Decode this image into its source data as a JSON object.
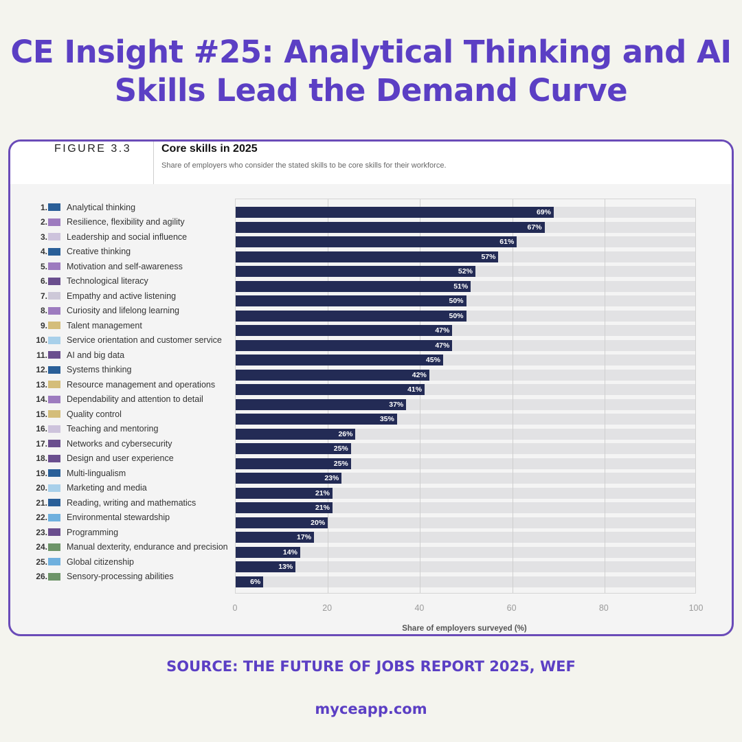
{
  "headline": {
    "line1": "CE Insight #25: Analytical Thinking and AI",
    "line2": "Skills Lead the Demand Curve",
    "color": "#5b3fc4"
  },
  "figure": {
    "label": "FIGURE 3.3",
    "title": "Core skills in 2025",
    "subtitle": "Share of employers who consider the stated skills to be core skills for their workforce.",
    "bar_color": "#232b55",
    "track_color": "#e2e2e4"
  },
  "footer": {
    "source": "SOURCE: THE FUTURE OF JOBS REPORT 2025, WEF",
    "site": "myceapp.com"
  },
  "chart_data": {
    "type": "bar",
    "orientation": "horizontal",
    "title": "Core skills in 2025",
    "subtitle": "Share of employers who consider the stated skills to be core skills for their workforce.",
    "xlabel": "Share of employers surveyed (%)",
    "ylabel": "",
    "xlim": [
      0,
      100
    ],
    "xticks": [
      0,
      20,
      40,
      60,
      80,
      100
    ],
    "grid": true,
    "legend": "none",
    "categories": [
      "Analytical thinking",
      "Resilience, flexibility and agility",
      "Leadership and social influence",
      "Creative thinking",
      "Motivation and self-awareness",
      "Technological literacy",
      "Empathy and active listening",
      "Curiosity and lifelong learning",
      "Talent management",
      "Service orientation and customer service",
      "AI and big data",
      "Systems thinking",
      "Resource management and operations",
      "Dependability and attention to detail",
      "Quality control",
      "Teaching and mentoring",
      "Networks and cybersecurity",
      "Design and user experience",
      "Multi-lingualism",
      "Marketing and media",
      "Reading, writing and mathematics",
      "Environmental stewardship",
      "Programming",
      "Manual dexterity, endurance and precision",
      "Global citizenship",
      "Sensory-processing abilities"
    ],
    "values": [
      69,
      67,
      61,
      57,
      52,
      51,
      50,
      50,
      47,
      47,
      45,
      42,
      41,
      37,
      35,
      26,
      25,
      25,
      23,
      21,
      21,
      20,
      17,
      14,
      13,
      6
    ],
    "value_labels": [
      "69%",
      "67%",
      "61%",
      "57%",
      "52%",
      "51%",
      "50%",
      "50%",
      "47%",
      "47%",
      "45%",
      "42%",
      "41%",
      "37%",
      "35%",
      "26%",
      "25%",
      "25%",
      "23%",
      "21%",
      "21%",
      "20%",
      "17%",
      "14%",
      "13%",
      "6%"
    ],
    "ranks": [
      "1.",
      "2.",
      "3.",
      "4.",
      "5.",
      "6.",
      "7.",
      "8.",
      "9.",
      "10.",
      "11.",
      "12.",
      "13.",
      "14.",
      "15.",
      "16.",
      "17.",
      "18.",
      "19.",
      "20.",
      "21.",
      "22.",
      "23.",
      "24.",
      "25.",
      "26."
    ],
    "swatch_colors": [
      "#2a5f98",
      "#9d7bbf",
      "#cdc3dc",
      "#2a5f98",
      "#9d7bbf",
      "#6a4e8e",
      "#cdc8d8",
      "#9d7bbf",
      "#d4bd7a",
      "#a8d0ea",
      "#6a4e8e",
      "#2a5f98",
      "#d4bd7a",
      "#9d7bbf",
      "#d4bd7a",
      "#cdc3dc",
      "#6a4e8e",
      "#6a4e8e",
      "#2a5f98",
      "#a8d0ea",
      "#2a5f98",
      "#6fb0de",
      "#6a4e8e",
      "#6d9468",
      "#6fb0de",
      "#6d9468"
    ]
  }
}
